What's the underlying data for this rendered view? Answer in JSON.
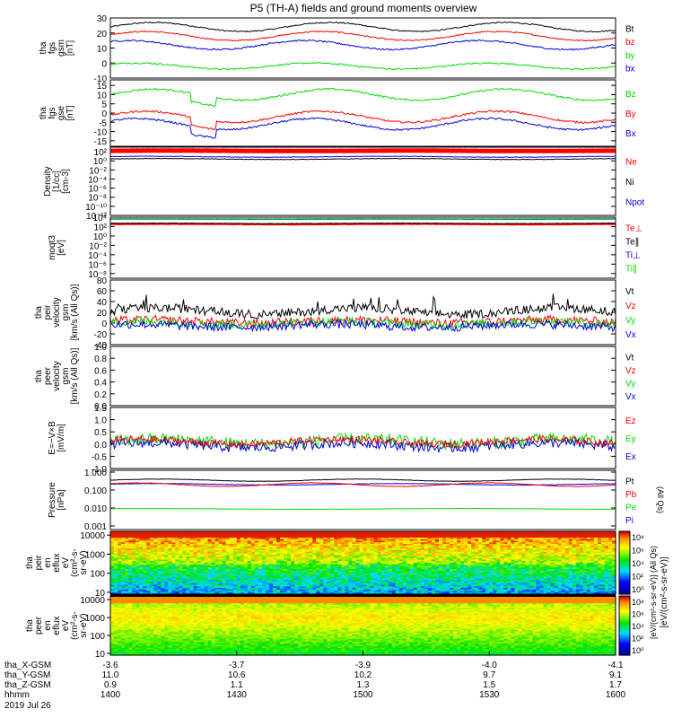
{
  "title": "P5 (TH-A) fields and ground moments overview",
  "chart_data": [
    {
      "id": "fgs_mag",
      "type": "line",
      "ylabel": [
        "tha",
        "fgs",
        "gsm",
        "[nT]"
      ],
      "yticks": [
        "30",
        "20",
        "10",
        "0",
        "-10"
      ],
      "ylim": [
        -10,
        30
      ],
      "series": [
        {
          "name": "Bt",
          "color": "#000000",
          "level": 24,
          "amp": 3,
          "period": 22,
          "noise": 0.4,
          "lw": 1
        },
        {
          "name": "bz",
          "color": "#ff0000",
          "level": 18,
          "amp": 3,
          "period": 22,
          "noise": 0.4,
          "lw": 1
        },
        {
          "name": "by",
          "color": "#00dd00",
          "level": -2,
          "amp": 2,
          "period": 22,
          "noise": 0.5,
          "lw": 1
        },
        {
          "name": "bx",
          "color": "#0000dd",
          "level": 12,
          "amp": 3,
          "period": 22,
          "noise": 0.5,
          "lw": 1
        }
      ],
      "legend": [
        "Bt",
        "bz",
        "by",
        "bx"
      ]
    },
    {
      "id": "fgs_gse",
      "type": "line",
      "ylabel": [
        "tha",
        "fgs",
        "gse",
        "[nT]"
      ],
      "yticks": [
        "15",
        "10",
        "5",
        "0",
        "-5",
        "-10",
        "-15"
      ],
      "ylim": [
        -18,
        18
      ],
      "series": [
        {
          "name": "Bz",
          "color": "#00dd00",
          "level": 10,
          "amp": 3,
          "period": 22,
          "noise": 0.5,
          "lw": 1
        },
        {
          "name": "By",
          "color": "#ff0000",
          "level": -2,
          "amp": 3,
          "period": 22,
          "noise": 0.5,
          "lw": 1
        },
        {
          "name": "Bx",
          "color": "#0000dd",
          "level": -6,
          "amp": 3,
          "period": 22,
          "noise": 0.5,
          "lw": 1
        }
      ],
      "legend": [
        "Bz",
        "By",
        "Bx"
      ]
    },
    {
      "id": "density",
      "type": "line",
      "yscale": "log",
      "ylabel": [
        "Density",
        "[1/cc]",
        "[cm-3]"
      ],
      "yticks": [
        "10²",
        "10⁰",
        "10⁻²",
        "10⁻⁴",
        "10⁻⁶",
        "10⁻⁸",
        "10⁻¹⁰",
        "10⁻¹²"
      ],
      "ylim": [
        -12,
        3
      ],
      "series": [
        {
          "name": "Ne",
          "color": "#ff0000",
          "level": 2.2,
          "amp": 0.05,
          "period": 30,
          "noise": 0.02,
          "lw": 5
        },
        {
          "name": "Ni",
          "color": "#000000",
          "level": 0.4,
          "amp": 0.1,
          "period": 30,
          "noise": 0.05,
          "lw": 1
        },
        {
          "name": "Npot",
          "color": "#0000dd",
          "level": 0.9,
          "amp": 0.1,
          "period": 30,
          "noise": 0.05,
          "lw": 1
        }
      ],
      "legend": [
        "Ne",
        "Ni",
        "Npot"
      ]
    },
    {
      "id": "temperature",
      "type": "line",
      "yscale": "log",
      "ylabel": [
        "moqt3",
        "[eV]"
      ],
      "yticks": [
        "10⁴",
        "10²",
        "10⁰",
        "10⁻²",
        "10⁻⁴",
        "10⁻⁶",
        "10⁻⁸"
      ],
      "ylim": [
        -9,
        4
      ],
      "series": [
        {
          "name": "Te⊥",
          "color": "#ff0000",
          "level": 2.5,
          "amp": 0.05,
          "period": 30,
          "noise": 0.03,
          "lw": 2
        },
        {
          "name": "Te∥",
          "color": "#000000",
          "level": 2.7,
          "amp": 0.05,
          "period": 30,
          "noise": 0.03,
          "lw": 1
        },
        {
          "name": "Ti⊥",
          "color": "#0000dd",
          "level": 3.6,
          "amp": 0.02,
          "period": 30,
          "noise": 0.01,
          "lw": 1
        },
        {
          "name": "Ti∥",
          "color": "#00dd00",
          "level": 3.7,
          "amp": 0.02,
          "period": 30,
          "noise": 0.01,
          "lw": 1
        }
      ],
      "legend": [
        "Te⊥",
        "Te∥",
        "Ti⊥",
        "Ti∥"
      ]
    },
    {
      "id": "peir_velocity",
      "type": "line",
      "ylabel": [
        "tha",
        "peir",
        "velocity",
        "gsm",
        "[km/s (All Qs)]"
      ],
      "yticks": [
        "80",
        "60",
        "40",
        "20",
        "0",
        "-20",
        "-40"
      ],
      "ylim": [
        -40,
        80
      ],
      "series": [
        {
          "name": "Vt",
          "color": "#000000",
          "level": 22,
          "amp": 6,
          "period": 25,
          "noise": 8,
          "lw": 1
        },
        {
          "name": "Vz",
          "color": "#ff0000",
          "level": 3,
          "amp": 3,
          "period": 25,
          "noise": 8,
          "lw": 1
        },
        {
          "name": "Vy",
          "color": "#00dd00",
          "level": 0,
          "amp": 3,
          "period": 25,
          "noise": 8,
          "lw": 1
        },
        {
          "name": "Vx",
          "color": "#0000dd",
          "level": -5,
          "amp": 3,
          "period": 25,
          "noise": 8,
          "lw": 1
        }
      ],
      "legend": [
        "Vt",
        "Vz",
        "Vy",
        "Vx"
      ]
    },
    {
      "id": "peer_velocity",
      "type": "line",
      "ylabel": [
        "tha",
        "peer",
        "velocity",
        "gsm",
        "[km/s (All Qs)]"
      ],
      "yticks": [
        "1.0",
        "0.8",
        "0.6",
        "0.4",
        "0.2",
        "0.0"
      ],
      "ylim": [
        0,
        1
      ],
      "series": [],
      "legend": [
        "Vt",
        "Vz",
        "Vy",
        "Vx"
      ],
      "legend_colors": [
        "#000000",
        "#ff0000",
        "#00dd00",
        "#0000dd"
      ]
    },
    {
      "id": "efield",
      "type": "line",
      "ylabel": [
        "E=−V×B",
        "[mV/m]"
      ],
      "yticks": [
        "1.5",
        "1.0",
        "0.5",
        "0.0",
        "-0.5",
        "-1.0"
      ],
      "ylim": [
        -1.0,
        1.5
      ],
      "series": [
        {
          "name": "Ey",
          "color": "#00dd00",
          "level": 0.1,
          "amp": 0.1,
          "period": 25,
          "noise": 0.25,
          "lw": 1
        },
        {
          "name": "Ex",
          "color": "#0000dd",
          "level": -0.05,
          "amp": 0.1,
          "period": 25,
          "noise": 0.2,
          "lw": 1
        },
        {
          "name": "Ez",
          "color": "#ff0000",
          "level": 0.1,
          "amp": 0.1,
          "period": 25,
          "noise": 0.15,
          "lw": 1
        }
      ],
      "legend": [
        "Ez",
        "Ey",
        "Ex"
      ]
    },
    {
      "id": "pressure",
      "type": "line",
      "yscale": "log",
      "ylabel": [
        "Pressure",
        "[nPa]"
      ],
      "yticks": [
        "1.000",
        "0.100",
        "0.010",
        "0.001"
      ],
      "ylim": [
        -3.2,
        0.1
      ],
      "ytick_values": [
        0,
        -1,
        -2,
        -3
      ],
      "series": [
        {
          "name": "Pt",
          "color": "#000000",
          "level": -0.45,
          "amp": 0.06,
          "period": 25,
          "noise": 0.01,
          "lw": 1
        },
        {
          "name": "Pi",
          "color": "#0000dd",
          "level": -0.68,
          "amp": 0.04,
          "period": 30,
          "noise": 0.01,
          "lw": 1
        },
        {
          "name": "Pb",
          "color": "#ff0000",
          "level": -0.7,
          "amp": 0.1,
          "period": 22,
          "noise": 0.01,
          "lw": 1
        },
        {
          "name": "Pe",
          "color": "#00dd00",
          "level": -2.05,
          "amp": 0.02,
          "period": 40,
          "noise": 0.005,
          "lw": 1
        }
      ],
      "legend": [
        "Pt",
        "Pb",
        "Pe",
        "Pi"
      ],
      "legend_colors": [
        "#000000",
        "#ff0000",
        "#00dd00",
        "#0000dd"
      ],
      "side_label": "(All Qs)"
    },
    {
      "id": "peir_spectrogram",
      "type": "heatmap",
      "ylabel": [
        "tha",
        "peir",
        "en",
        "eflux",
        "eV",
        "(cm²-s-",
        "sr-eV)"
      ],
      "yticks": [
        "10000",
        "1000",
        "100",
        "10"
      ],
      "ylim_log": [
        0.9,
        4.2
      ],
      "colorbar_ticks": [
        "10⁸",
        "10⁶",
        "10⁴",
        "10²",
        "10⁰"
      ]
    },
    {
      "id": "peer_spectrogram",
      "type": "heatmap",
      "ylabel": [
        "tha",
        "peer",
        "en",
        "eflux",
        "eV",
        "(cm²-s-",
        "sr-eV)"
      ],
      "yticks": [
        "10000",
        "1000",
        "100",
        "10"
      ],
      "ylim_log": [
        0.9,
        4.2
      ],
      "colorbar_ticks": [
        "10⁸",
        "10⁶",
        "10⁴",
        "10²",
        "10⁰"
      ]
    }
  ],
  "colorbar_label": "[eV/(cm²-s-sr-eV)]",
  "colorbar_label2": "[eV/(cm²-s-sr-eV)] (All Qs)",
  "xaxis": {
    "row_labels": [
      "tha_X-GSM",
      "tha_Y-GSM",
      "tha_Z-GSM",
      "hhmm",
      "2019 Jul 26"
    ],
    "ticks": [
      {
        "x": "-3.6",
        "y": "11.0",
        "z": "0.9",
        "t": "1400"
      },
      {
        "x": "-3.7",
        "y": "10.6",
        "z": "1.1",
        "t": "1430"
      },
      {
        "x": "-3.9",
        "y": "10.2",
        "z": "1.3",
        "t": "1500"
      },
      {
        "x": "-4.0",
        "y": "9.7",
        "z": "1.5",
        "t": "1530"
      },
      {
        "x": "-4.1",
        "y": "9.1",
        "z": "1.7",
        "t": "1600"
      }
    ]
  }
}
